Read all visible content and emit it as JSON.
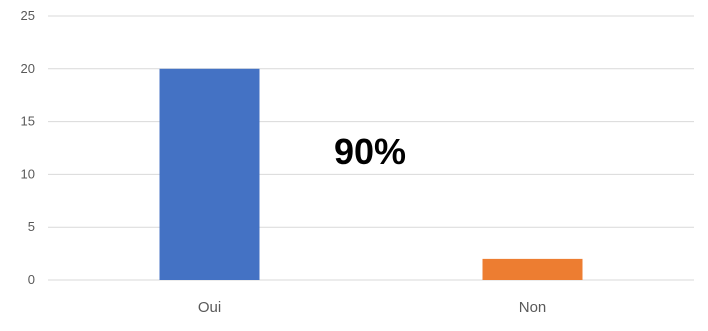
{
  "chart_data": {
    "type": "bar",
    "categories": [
      "Oui",
      "Non"
    ],
    "values": [
      20,
      2
    ],
    "ylim": [
      0,
      25
    ],
    "yticks": [
      0,
      5,
      10,
      15,
      20,
      25
    ],
    "grid": true,
    "annotation": "90%",
    "colors": [
      "#4472C4",
      "#ED7D31"
    ],
    "gridline_color": "#d9d9d9",
    "axis_label_color": "#595959"
  }
}
